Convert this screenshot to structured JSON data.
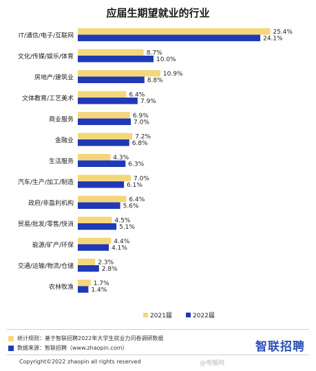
{
  "colors": {
    "y2021": "#f4d77d",
    "y2022": "#1f39b8"
  },
  "chart_data": {
    "type": "bar",
    "orientation": "horizontal",
    "title": "应届生期望就业的行业",
    "categories": [
      "IT/通信/电子/互联网",
      "文化/传媒/娱乐/体育",
      "房地产/建筑业",
      "文体教育/工艺美术",
      "商业服务",
      "金融业",
      "生活服务",
      "汽车/生产/加工/制造",
      "政府/非盈利机构",
      "贸易/批发/零售/快消",
      "能源/矿产/环保",
      "交通/运输/物流/仓储",
      "农林牧渔"
    ],
    "series": [
      {
        "name": "2021届",
        "values": [
          25.4,
          8.7,
          10.9,
          6.4,
          6.9,
          7.2,
          4.3,
          7.0,
          6.4,
          4.5,
          4.4,
          2.3,
          1.7
        ],
        "labels": [
          "25.4%",
          "8.7%",
          "10.9%",
          "6.4%",
          "6.9%",
          "7.2%",
          "4.3%",
          "7.0%",
          "6.4%",
          "4.5%",
          "4.4%",
          "2.3%",
          "1.7%"
        ]
      },
      {
        "name": "2022届",
        "values": [
          24.1,
          10.0,
          8.8,
          7.9,
          7.0,
          6.8,
          6.3,
          6.1,
          5.6,
          5.1,
          4.1,
          2.8,
          1.4
        ],
        "labels": [
          "24.1%",
          "10.0%",
          "8.8%",
          "7.9%",
          "7.0%",
          "6.8%",
          "6.3%",
          "6.1%",
          "5.6%",
          "5.1%",
          "4.1%",
          "2.8%",
          "1.4%"
        ]
      }
    ],
    "legend_position": "bottom-right",
    "grid": false
  },
  "notes": [
    {
      "text": "统计规则：基于智联招聘2022年大学生就业力问卷调研数据",
      "color": "#f4d77d"
    },
    {
      "text": "数据来源：智联招聘（www.zhaopin.com）",
      "color": "#1f39b8"
    }
  ],
  "brand": "智联招聘",
  "copyright": "Copyright©2022 zhaopin all rights reserved",
  "watermark": "@电鳗网"
}
